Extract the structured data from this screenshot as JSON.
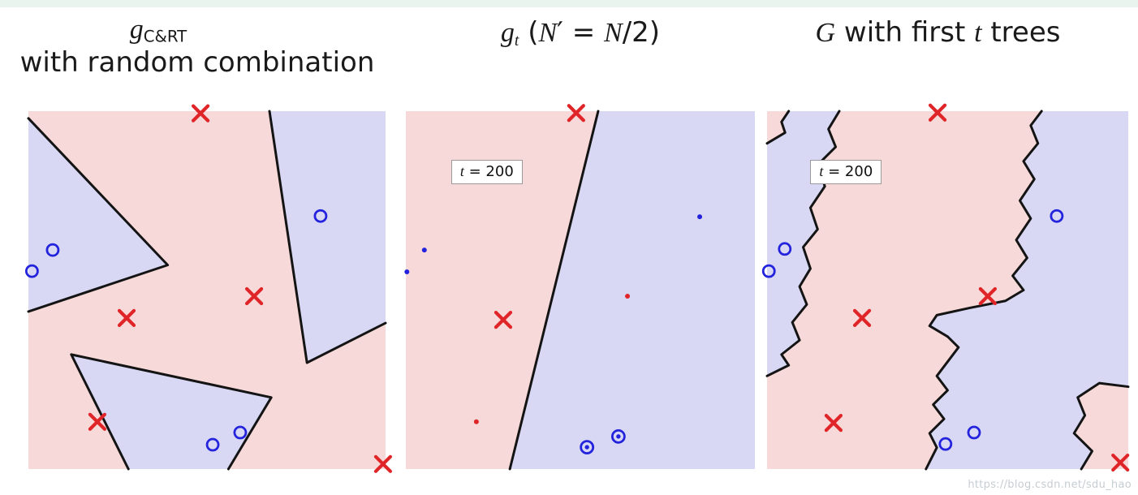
{
  "page": {
    "watermark": "https://blog.csdn.net/sdu_hao",
    "top_strip_color": "#e9f4ee",
    "background": "#ffffff"
  },
  "colors": {
    "pink": "#f8d9d9",
    "blue": "#d8d8f5",
    "boundary": "#141414",
    "red": "#e02528",
    "blue_marker": "#2323dd",
    "badge_bg": "#ffffff",
    "badge_border": "#9a9a9a"
  },
  "chart_data": [
    {
      "id": "g-cart-with-random-combination",
      "type": "scatter-decision-regions",
      "title": {
        "segments": [
          {
            "t": "g",
            "s": "mi"
          },
          {
            "t": "C&RT",
            "s": "sub"
          }
        ],
        "line2": "with random combination"
      },
      "badge": null,
      "x_range": [
        0,
        100
      ],
      "y_range": [
        0,
        100
      ],
      "blue_polygons": [
        [
          [
            0,
            2
          ],
          [
            39,
            43
          ],
          [
            0,
            56
          ]
        ],
        [
          [
            67.5,
            0
          ],
          [
            100,
            0
          ],
          [
            100,
            59.2
          ],
          [
            78,
            70.3
          ]
        ],
        [
          [
            12,
            68
          ],
          [
            68,
            80
          ],
          [
            56,
            100
          ],
          [
            28,
            100
          ]
        ]
      ],
      "pink_polygons": [],
      "boundaries": [
        [
          [
            0,
            2
          ],
          [
            39,
            43
          ],
          [
            0,
            56
          ]
        ],
        [
          [
            67.5,
            0
          ],
          [
            78,
            70.3
          ],
          [
            100,
            59.2
          ]
        ],
        [
          [
            28,
            100
          ],
          [
            12,
            68
          ],
          [
            68,
            80
          ],
          [
            56,
            100
          ]
        ]
      ],
      "points": [
        {
          "x": 48.2,
          "y": 0.6,
          "marker": "x",
          "color": "red"
        },
        {
          "x": 81.8,
          "y": 29.3,
          "marker": "o",
          "color": "blue"
        },
        {
          "x": 6.8,
          "y": 38.8,
          "marker": "o",
          "color": "blue"
        },
        {
          "x": 1.0,
          "y": 44.7,
          "marker": "o",
          "color": "blue"
        },
        {
          "x": 63.2,
          "y": 51.7,
          "marker": "x",
          "color": "red"
        },
        {
          "x": 27.5,
          "y": 57.8,
          "marker": "x",
          "color": "red"
        },
        {
          "x": 19.3,
          "y": 86.8,
          "marker": "x",
          "color": "red"
        },
        {
          "x": 59.3,
          "y": 89.8,
          "marker": "o",
          "color": "blue"
        },
        {
          "x": 51.6,
          "y": 93.2,
          "marker": "o",
          "color": "blue"
        },
        {
          "x": 99.3,
          "y": 98.6,
          "marker": "x",
          "color": "red"
        }
      ]
    },
    {
      "id": "g-t-single-tree-half-data",
      "type": "scatter-decision-regions",
      "title": {
        "segments": [
          {
            "t": "g",
            "s": "mi"
          },
          {
            "t": "t",
            "s": "subi"
          },
          {
            "t": " (",
            "s": "txt"
          },
          {
            "t": "N",
            "s": "mi"
          },
          {
            "t": "′",
            "s": "txt"
          },
          {
            "t": " = ",
            "s": "txt"
          },
          {
            "t": "N",
            "s": "mi"
          },
          {
            "t": "/2)",
            "s": "txt"
          }
        ],
        "line2": null
      },
      "badge": {
        "x": 13,
        "y": 13.5,
        "segments": [
          {
            "t": "t",
            "s": "mi"
          },
          {
            "t": " = 200",
            "s": "txt"
          }
        ]
      },
      "x_range": [
        0,
        100
      ],
      "y_range": [
        0,
        100
      ],
      "blue_polygons": [
        [
          [
            55.1,
            0
          ],
          [
            100,
            0
          ],
          [
            100,
            100
          ],
          [
            29.8,
            100
          ]
        ]
      ],
      "pink_polygons": [],
      "boundaries": [
        [
          [
            55.1,
            0
          ],
          [
            29.8,
            100
          ]
        ]
      ],
      "points": [
        {
          "x": 48.8,
          "y": 0.5,
          "marker": "x",
          "color": "red"
        },
        {
          "x": 84.2,
          "y": 29.5,
          "marker": "dot",
          "color": "blue"
        },
        {
          "x": 5.3,
          "y": 38.8,
          "marker": "dot",
          "color": "blue"
        },
        {
          "x": 0.3,
          "y": 44.9,
          "marker": "dot",
          "color": "blue"
        },
        {
          "x": 63.5,
          "y": 51.7,
          "marker": "dot",
          "color": "red"
        },
        {
          "x": 27.9,
          "y": 58.3,
          "marker": "x",
          "color": "red"
        },
        {
          "x": 20.2,
          "y": 86.8,
          "marker": "dot",
          "color": "red"
        },
        {
          "x": 51.9,
          "y": 93.9,
          "marker": "circle-dot",
          "color": "blue"
        },
        {
          "x": 60.9,
          "y": 90.9,
          "marker": "circle-dot",
          "color": "blue"
        }
      ]
    },
    {
      "id": "G-with-first-t-trees",
      "type": "scatter-decision-regions",
      "title": {
        "segments": [
          {
            "t": "G",
            "s": "mi"
          },
          {
            "t": " with first ",
            "s": "txt"
          },
          {
            "t": "t",
            "s": "mi"
          },
          {
            "t": " trees",
            "s": "txt"
          }
        ],
        "line2": null
      },
      "badge": {
        "x": 12,
        "y": 13.5,
        "segments": [
          {
            "t": "t",
            "s": "mi"
          },
          {
            "t": " = 200",
            "s": "txt"
          }
        ]
      },
      "x_range": [
        0,
        100
      ],
      "y_range": [
        0,
        100
      ],
      "blue_polygons": [
        [
          [
            20,
            0
          ],
          [
            17,
            5
          ],
          [
            19,
            10
          ],
          [
            14,
            15
          ],
          [
            16,
            21
          ],
          [
            12,
            27
          ],
          [
            14,
            33
          ],
          [
            10,
            38
          ],
          [
            12,
            44
          ],
          [
            9,
            49
          ],
          [
            11,
            54
          ],
          [
            7,
            59
          ],
          [
            9,
            64
          ],
          [
            4,
            68
          ],
          [
            6,
            71
          ],
          [
            0,
            74
          ],
          [
            0,
            0
          ]
        ],
        [
          [
            100,
            0
          ],
          [
            100,
            100
          ],
          [
            44,
            100
          ],
          [
            47,
            94
          ],
          [
            45,
            90
          ],
          [
            49,
            86
          ],
          [
            46,
            82
          ],
          [
            50,
            78
          ],
          [
            47,
            74
          ],
          [
            50,
            70
          ],
          [
            53,
            66
          ],
          [
            50,
            63
          ],
          [
            45,
            60
          ],
          [
            47,
            57
          ],
          [
            56,
            55
          ],
          [
            66,
            53
          ],
          [
            71,
            50
          ],
          [
            68,
            46
          ],
          [
            72,
            41
          ],
          [
            69,
            36
          ],
          [
            73,
            30
          ],
          [
            70,
            25
          ],
          [
            74,
            19
          ],
          [
            71,
            14
          ],
          [
            75,
            9
          ],
          [
            73,
            4
          ],
          [
            76,
            0
          ]
        ]
      ],
      "pink_polygons": [
        [
          [
            0,
            0
          ],
          [
            6,
            0
          ],
          [
            4,
            3
          ],
          [
            5,
            6
          ],
          [
            0,
            9
          ]
        ],
        [
          [
            100,
            77
          ],
          [
            92,
            76
          ],
          [
            86,
            80
          ],
          [
            88,
            85
          ],
          [
            85,
            90
          ],
          [
            90,
            95
          ],
          [
            87,
            100
          ],
          [
            100,
            100
          ]
        ]
      ],
      "boundaries": [
        [
          [
            20,
            0
          ],
          [
            17,
            5
          ],
          [
            19,
            10
          ],
          [
            14,
            15
          ],
          [
            16,
            21
          ],
          [
            12,
            27
          ],
          [
            14,
            33
          ],
          [
            10,
            38
          ],
          [
            12,
            44
          ],
          [
            9,
            49
          ],
          [
            11,
            54
          ],
          [
            7,
            59
          ],
          [
            9,
            64
          ],
          [
            4,
            68
          ],
          [
            6,
            71
          ],
          [
            0,
            74
          ]
        ],
        [
          [
            6,
            0
          ],
          [
            4,
            3
          ],
          [
            5,
            6
          ],
          [
            0,
            9
          ]
        ],
        [
          [
            76,
            0
          ],
          [
            73,
            4
          ],
          [
            75,
            9
          ],
          [
            71,
            14
          ],
          [
            74,
            19
          ],
          [
            70,
            25
          ],
          [
            73,
            30
          ],
          [
            69,
            36
          ],
          [
            72,
            41
          ],
          [
            68,
            46
          ],
          [
            71,
            50
          ],
          [
            66,
            53
          ],
          [
            56,
            55
          ],
          [
            47,
            57
          ],
          [
            45,
            60
          ],
          [
            50,
            63
          ],
          [
            53,
            66
          ],
          [
            50,
            70
          ],
          [
            47,
            74
          ],
          [
            50,
            78
          ],
          [
            46,
            82
          ],
          [
            49,
            86
          ],
          [
            45,
            90
          ],
          [
            47,
            94
          ],
          [
            44,
            100
          ]
        ],
        [
          [
            100,
            77
          ],
          [
            92,
            76
          ],
          [
            86,
            80
          ],
          [
            88,
            85
          ],
          [
            85,
            90
          ],
          [
            90,
            95
          ],
          [
            87,
            100
          ]
        ]
      ],
      "points": [
        {
          "x": 47.2,
          "y": 0.4,
          "marker": "x",
          "color": "red"
        },
        {
          "x": 80.2,
          "y": 29.3,
          "marker": "o",
          "color": "blue"
        },
        {
          "x": 4.9,
          "y": 38.5,
          "marker": "o",
          "color": "blue"
        },
        {
          "x": 0.5,
          "y": 44.7,
          "marker": "o",
          "color": "blue"
        },
        {
          "x": 61.1,
          "y": 51.7,
          "marker": "x",
          "color": "red"
        },
        {
          "x": 26.3,
          "y": 57.8,
          "marker": "x",
          "color": "red"
        },
        {
          "x": 18.4,
          "y": 87.1,
          "marker": "x",
          "color": "red"
        },
        {
          "x": 57.3,
          "y": 89.8,
          "marker": "o",
          "color": "blue"
        },
        {
          "x": 49.4,
          "y": 93.0,
          "marker": "o",
          "color": "blue"
        },
        {
          "x": 97.8,
          "y": 98.2,
          "marker": "x",
          "color": "red"
        }
      ]
    }
  ]
}
